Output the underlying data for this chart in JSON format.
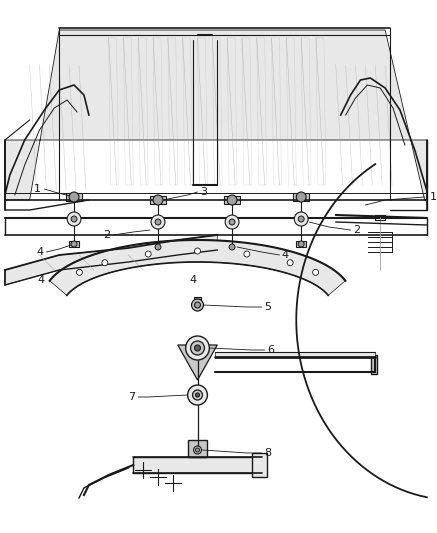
{
  "bg_color": "#ffffff",
  "line_color": "#1a1a1a",
  "fig_width": 4.37,
  "fig_height": 5.33,
  "dpi": 100,
  "gray_light": "#c8c8c8",
  "gray_mid": "#a0a0a0",
  "gray_dark": "#606060",
  "gray_very_light": "#e8e8e8",
  "gray_fill": "#d4d4d4"
}
